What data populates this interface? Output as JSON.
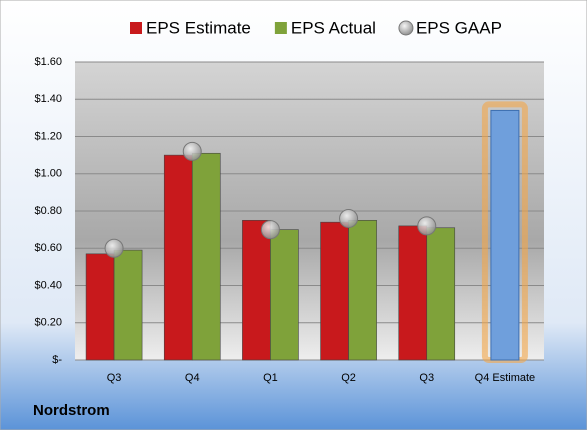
{
  "chart_data": {
    "type": "bar",
    "title": "Nordstrom",
    "categories": [
      "Q3",
      "Q4",
      "Q1",
      "Q2",
      "Q3",
      "Q4 Estimate"
    ],
    "series": [
      {
        "name": "EPS Estimate",
        "color": "#c8191c",
        "values": [
          0.57,
          1.1,
          0.75,
          0.74,
          0.72,
          null
        ]
      },
      {
        "name": "EPS Actual",
        "color": "#7fa23a",
        "values": [
          0.59,
          1.11,
          0.7,
          0.75,
          0.71,
          null
        ]
      },
      {
        "name": "EPS GAAP",
        "color": "#b0b0b0",
        "values": [
          0.6,
          1.12,
          0.7,
          0.76,
          0.72,
          null
        ],
        "marker": "circle"
      }
    ],
    "projection": {
      "color": "#6f9fdc",
      "glow": "#f3a64a",
      "values": [
        null,
        null,
        null,
        null,
        null,
        1.34
      ]
    },
    "ylim": [
      0,
      1.6
    ],
    "yticks": [
      {
        "value": 0,
        "label": "$-"
      },
      {
        "value": 0.2,
        "label": "$0.20"
      },
      {
        "value": 0.4,
        "label": "$0.40"
      },
      {
        "value": 0.6,
        "label": "$0.60"
      },
      {
        "value": 0.8,
        "label": "$0.80"
      },
      {
        "value": 1.0,
        "label": "$1.00"
      },
      {
        "value": 1.2,
        "label": "$1.20"
      },
      {
        "value": 1.4,
        "label": "$1.40"
      },
      {
        "value": 1.6,
        "label": "$1.60"
      }
    ],
    "grid": true
  }
}
